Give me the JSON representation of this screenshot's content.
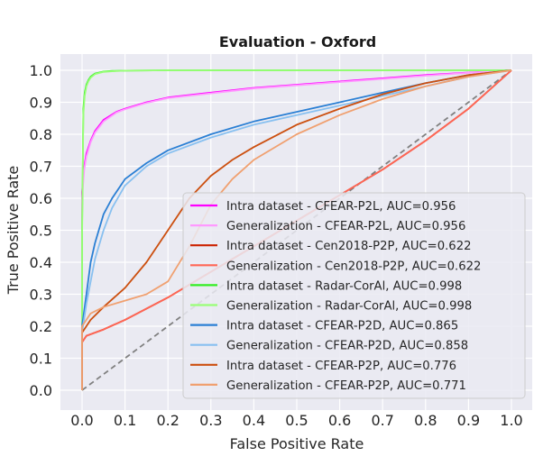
{
  "chart_data": {
    "type": "line",
    "title": "Evaluation - Oxford",
    "xlabel": "False Positive Rate",
    "ylabel": "True Positive Rate",
    "xlim": [
      0,
      1
    ],
    "ylim": [
      0,
      1
    ],
    "xticks": [
      "0.0",
      "0.1",
      "0.2",
      "0.3",
      "0.4",
      "0.5",
      "0.6",
      "0.7",
      "0.8",
      "0.9",
      "1.0"
    ],
    "yticks": [
      "0.0",
      "0.1",
      "0.2",
      "0.3",
      "0.4",
      "0.5",
      "0.6",
      "0.7",
      "0.8",
      "0.9",
      "1.0"
    ],
    "grid": true,
    "background": "#eaeaf2",
    "legend_position": "lower right",
    "diagonal": {
      "color": "#808080",
      "style": "dashed"
    },
    "series": [
      {
        "name": "Intra dataset - CFEAR-P2L, AUC=0.956",
        "color": "#ff00ff",
        "x": [
          0,
          0,
          0.005,
          0.01,
          0.02,
          0.03,
          0.05,
          0.08,
          0.1,
          0.15,
          0.2,
          0.3,
          0.4,
          0.5,
          0.6,
          0.7,
          0.8,
          0.9,
          1.0
        ],
        "y": [
          0,
          0.62,
          0.7,
          0.74,
          0.78,
          0.81,
          0.845,
          0.87,
          0.88,
          0.9,
          0.915,
          0.93,
          0.945,
          0.955,
          0.965,
          0.975,
          0.985,
          0.993,
          1.0
        ]
      },
      {
        "name": "Generalization - CFEAR-P2L, AUC=0.956",
        "color": "#ff99ff",
        "x": [
          0,
          0,
          0.005,
          0.01,
          0.02,
          0.03,
          0.05,
          0.08,
          0.1,
          0.15,
          0.2,
          0.3,
          0.4,
          0.5,
          0.6,
          0.7,
          0.8,
          0.9,
          1.0
        ],
        "y": [
          0,
          0.6,
          0.69,
          0.73,
          0.775,
          0.805,
          0.84,
          0.868,
          0.878,
          0.898,
          0.913,
          0.928,
          0.943,
          0.953,
          0.963,
          0.973,
          0.983,
          0.992,
          1.0
        ]
      },
      {
        "name": "Intra dataset - Cen2018-P2P, AUC=0.622",
        "color": "#cc2200",
        "x": [
          0,
          0,
          0.01,
          0.03,
          0.05,
          0.1,
          0.2,
          0.3,
          0.4,
          0.5,
          0.6,
          0.7,
          0.8,
          0.9,
          1.0
        ],
        "y": [
          0,
          0.15,
          0.17,
          0.18,
          0.19,
          0.22,
          0.29,
          0.37,
          0.45,
          0.53,
          0.61,
          0.69,
          0.78,
          0.88,
          1.0
        ]
      },
      {
        "name": "Generalization - Cen2018-P2P, AUC=0.622",
        "color": "#ff6655",
        "x": [
          0,
          0,
          0.01,
          0.03,
          0.05,
          0.1,
          0.2,
          0.3,
          0.4,
          0.5,
          0.6,
          0.7,
          0.8,
          0.9,
          1.0
        ],
        "y": [
          0,
          0.15,
          0.17,
          0.18,
          0.19,
          0.22,
          0.29,
          0.37,
          0.45,
          0.53,
          0.61,
          0.69,
          0.78,
          0.88,
          1.0
        ]
      },
      {
        "name": "Intra dataset - Radar-CorAl, AUC=0.998",
        "color": "#33ee22",
        "x": [
          0,
          0,
          0.003,
          0.006,
          0.01,
          0.015,
          0.02,
          0.03,
          0.05,
          0.07,
          0.1,
          0.2,
          0.5,
          1.0
        ],
        "y": [
          0,
          0.5,
          0.88,
          0.93,
          0.955,
          0.97,
          0.98,
          0.99,
          0.996,
          0.998,
          0.999,
          1.0,
          1.0,
          1.0
        ]
      },
      {
        "name": "Generalization - Radar-CorAl, AUC=0.998",
        "color": "#99ff77",
        "x": [
          0,
          0,
          0.003,
          0.006,
          0.01,
          0.015,
          0.02,
          0.03,
          0.05,
          0.07,
          0.1,
          0.2,
          0.5,
          1.0
        ],
        "y": [
          0,
          0.48,
          0.86,
          0.92,
          0.95,
          0.966,
          0.977,
          0.988,
          0.995,
          0.997,
          0.999,
          1.0,
          1.0,
          1.0
        ]
      },
      {
        "name": "Intra dataset - CFEAR-P2D, AUC=0.865",
        "color": "#2a7fd4",
        "x": [
          0,
          0,
          0.01,
          0.02,
          0.03,
          0.05,
          0.07,
          0.1,
          0.15,
          0.2,
          0.3,
          0.4,
          0.5,
          0.6,
          0.7,
          0.8,
          0.9,
          1.0
        ],
        "y": [
          0,
          0.2,
          0.3,
          0.4,
          0.46,
          0.55,
          0.6,
          0.66,
          0.71,
          0.75,
          0.8,
          0.84,
          0.87,
          0.9,
          0.93,
          0.96,
          0.985,
          1.0
        ]
      },
      {
        "name": "Generalization - CFEAR-P2D, AUC=0.858",
        "color": "#88c0f0",
        "x": [
          0,
          0,
          0.01,
          0.02,
          0.03,
          0.05,
          0.07,
          0.1,
          0.15,
          0.2,
          0.3,
          0.4,
          0.5,
          0.6,
          0.7,
          0.8,
          0.9,
          1.0
        ],
        "y": [
          0,
          0.18,
          0.27,
          0.34,
          0.41,
          0.5,
          0.57,
          0.64,
          0.7,
          0.74,
          0.79,
          0.83,
          0.86,
          0.89,
          0.92,
          0.95,
          0.98,
          1.0
        ]
      },
      {
        "name": "Intra dataset - CFEAR-P2P, AUC=0.776",
        "color": "#cc4f0f",
        "x": [
          0,
          0,
          0.02,
          0.05,
          0.1,
          0.15,
          0.2,
          0.25,
          0.3,
          0.35,
          0.4,
          0.5,
          0.6,
          0.7,
          0.8,
          0.9,
          1.0
        ],
        "y": [
          0,
          0.18,
          0.22,
          0.26,
          0.32,
          0.4,
          0.5,
          0.6,
          0.67,
          0.72,
          0.76,
          0.83,
          0.88,
          0.925,
          0.96,
          0.985,
          1.0
        ]
      },
      {
        "name": "Generalization - CFEAR-P2P, AUC=0.771",
        "color": "#f0a070",
        "x": [
          0,
          0,
          0.02,
          0.05,
          0.1,
          0.15,
          0.2,
          0.25,
          0.3,
          0.35,
          0.4,
          0.5,
          0.6,
          0.7,
          0.8,
          0.9,
          1.0
        ],
        "y": [
          0,
          0.2,
          0.24,
          0.26,
          0.28,
          0.3,
          0.34,
          0.45,
          0.58,
          0.66,
          0.72,
          0.8,
          0.86,
          0.91,
          0.95,
          0.98,
          1.0
        ]
      }
    ]
  }
}
